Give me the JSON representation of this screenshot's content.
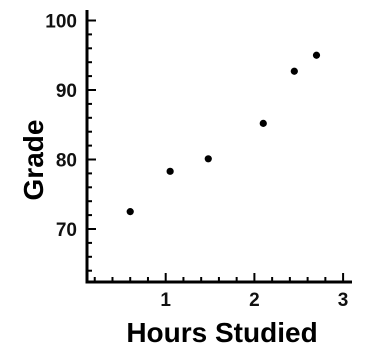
{
  "chart_data": {
    "type": "scatter",
    "title": "",
    "xlabel": "Hours Studied",
    "ylabel": "Grade",
    "xlim": [
      0,
      3.2
    ],
    "ylim": [
      62,
      102
    ],
    "x_ticks": [
      "1",
      "2",
      "3"
    ],
    "y_ticks": [
      "70",
      "80",
      "90",
      "100"
    ],
    "grid": false,
    "points": [
      {
        "x": 0.6,
        "y": 72.5
      },
      {
        "x": 1.05,
        "y": 78.3
      },
      {
        "x": 1.48,
        "y": 80.1
      },
      {
        "x": 2.1,
        "y": 85.2
      },
      {
        "x": 2.45,
        "y": 92.7
      },
      {
        "x": 2.7,
        "y": 95.0
      }
    ],
    "colors": {
      "points": "#000000",
      "axes": "#000000"
    }
  }
}
